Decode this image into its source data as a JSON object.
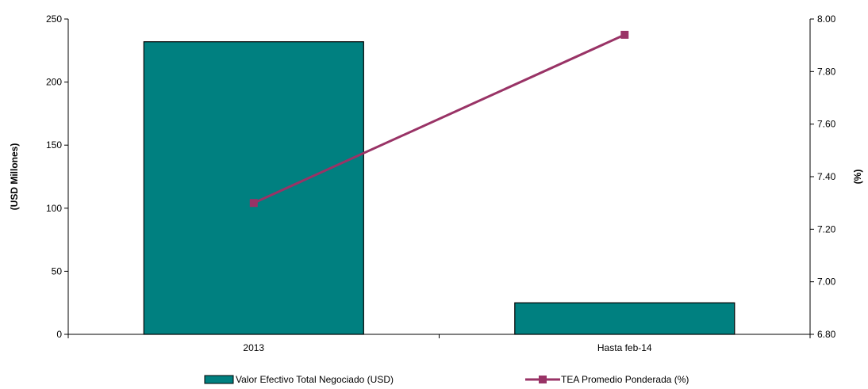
{
  "chart_data": {
    "type": "bar",
    "categories": [
      "2013",
      "Hasta feb-14"
    ],
    "series": [
      {
        "name": "Valor Efectivo Total Negociado (USD)",
        "type": "bar",
        "axis": "left",
        "values": [
          232,
          25
        ],
        "color": "#008080"
      },
      {
        "name": "TEA Promedio Ponderada (%)",
        "type": "line",
        "axis": "right",
        "values": [
          7.3,
          7.94
        ],
        "color": "#993366"
      }
    ],
    "ylabel_left": "(USD Millones)",
    "ylabel_right": "(%)",
    "ylim_left": [
      0,
      250
    ],
    "ylim_right": [
      6.8,
      8.0
    ],
    "yticks_left": [
      "0",
      "50",
      "100",
      "150",
      "200",
      "250"
    ],
    "yticks_right": [
      "6.80",
      "7.00",
      "7.20",
      "7.40",
      "7.60",
      "7.80",
      "8.00"
    ],
    "legend_position": "bottom",
    "grid": false
  }
}
